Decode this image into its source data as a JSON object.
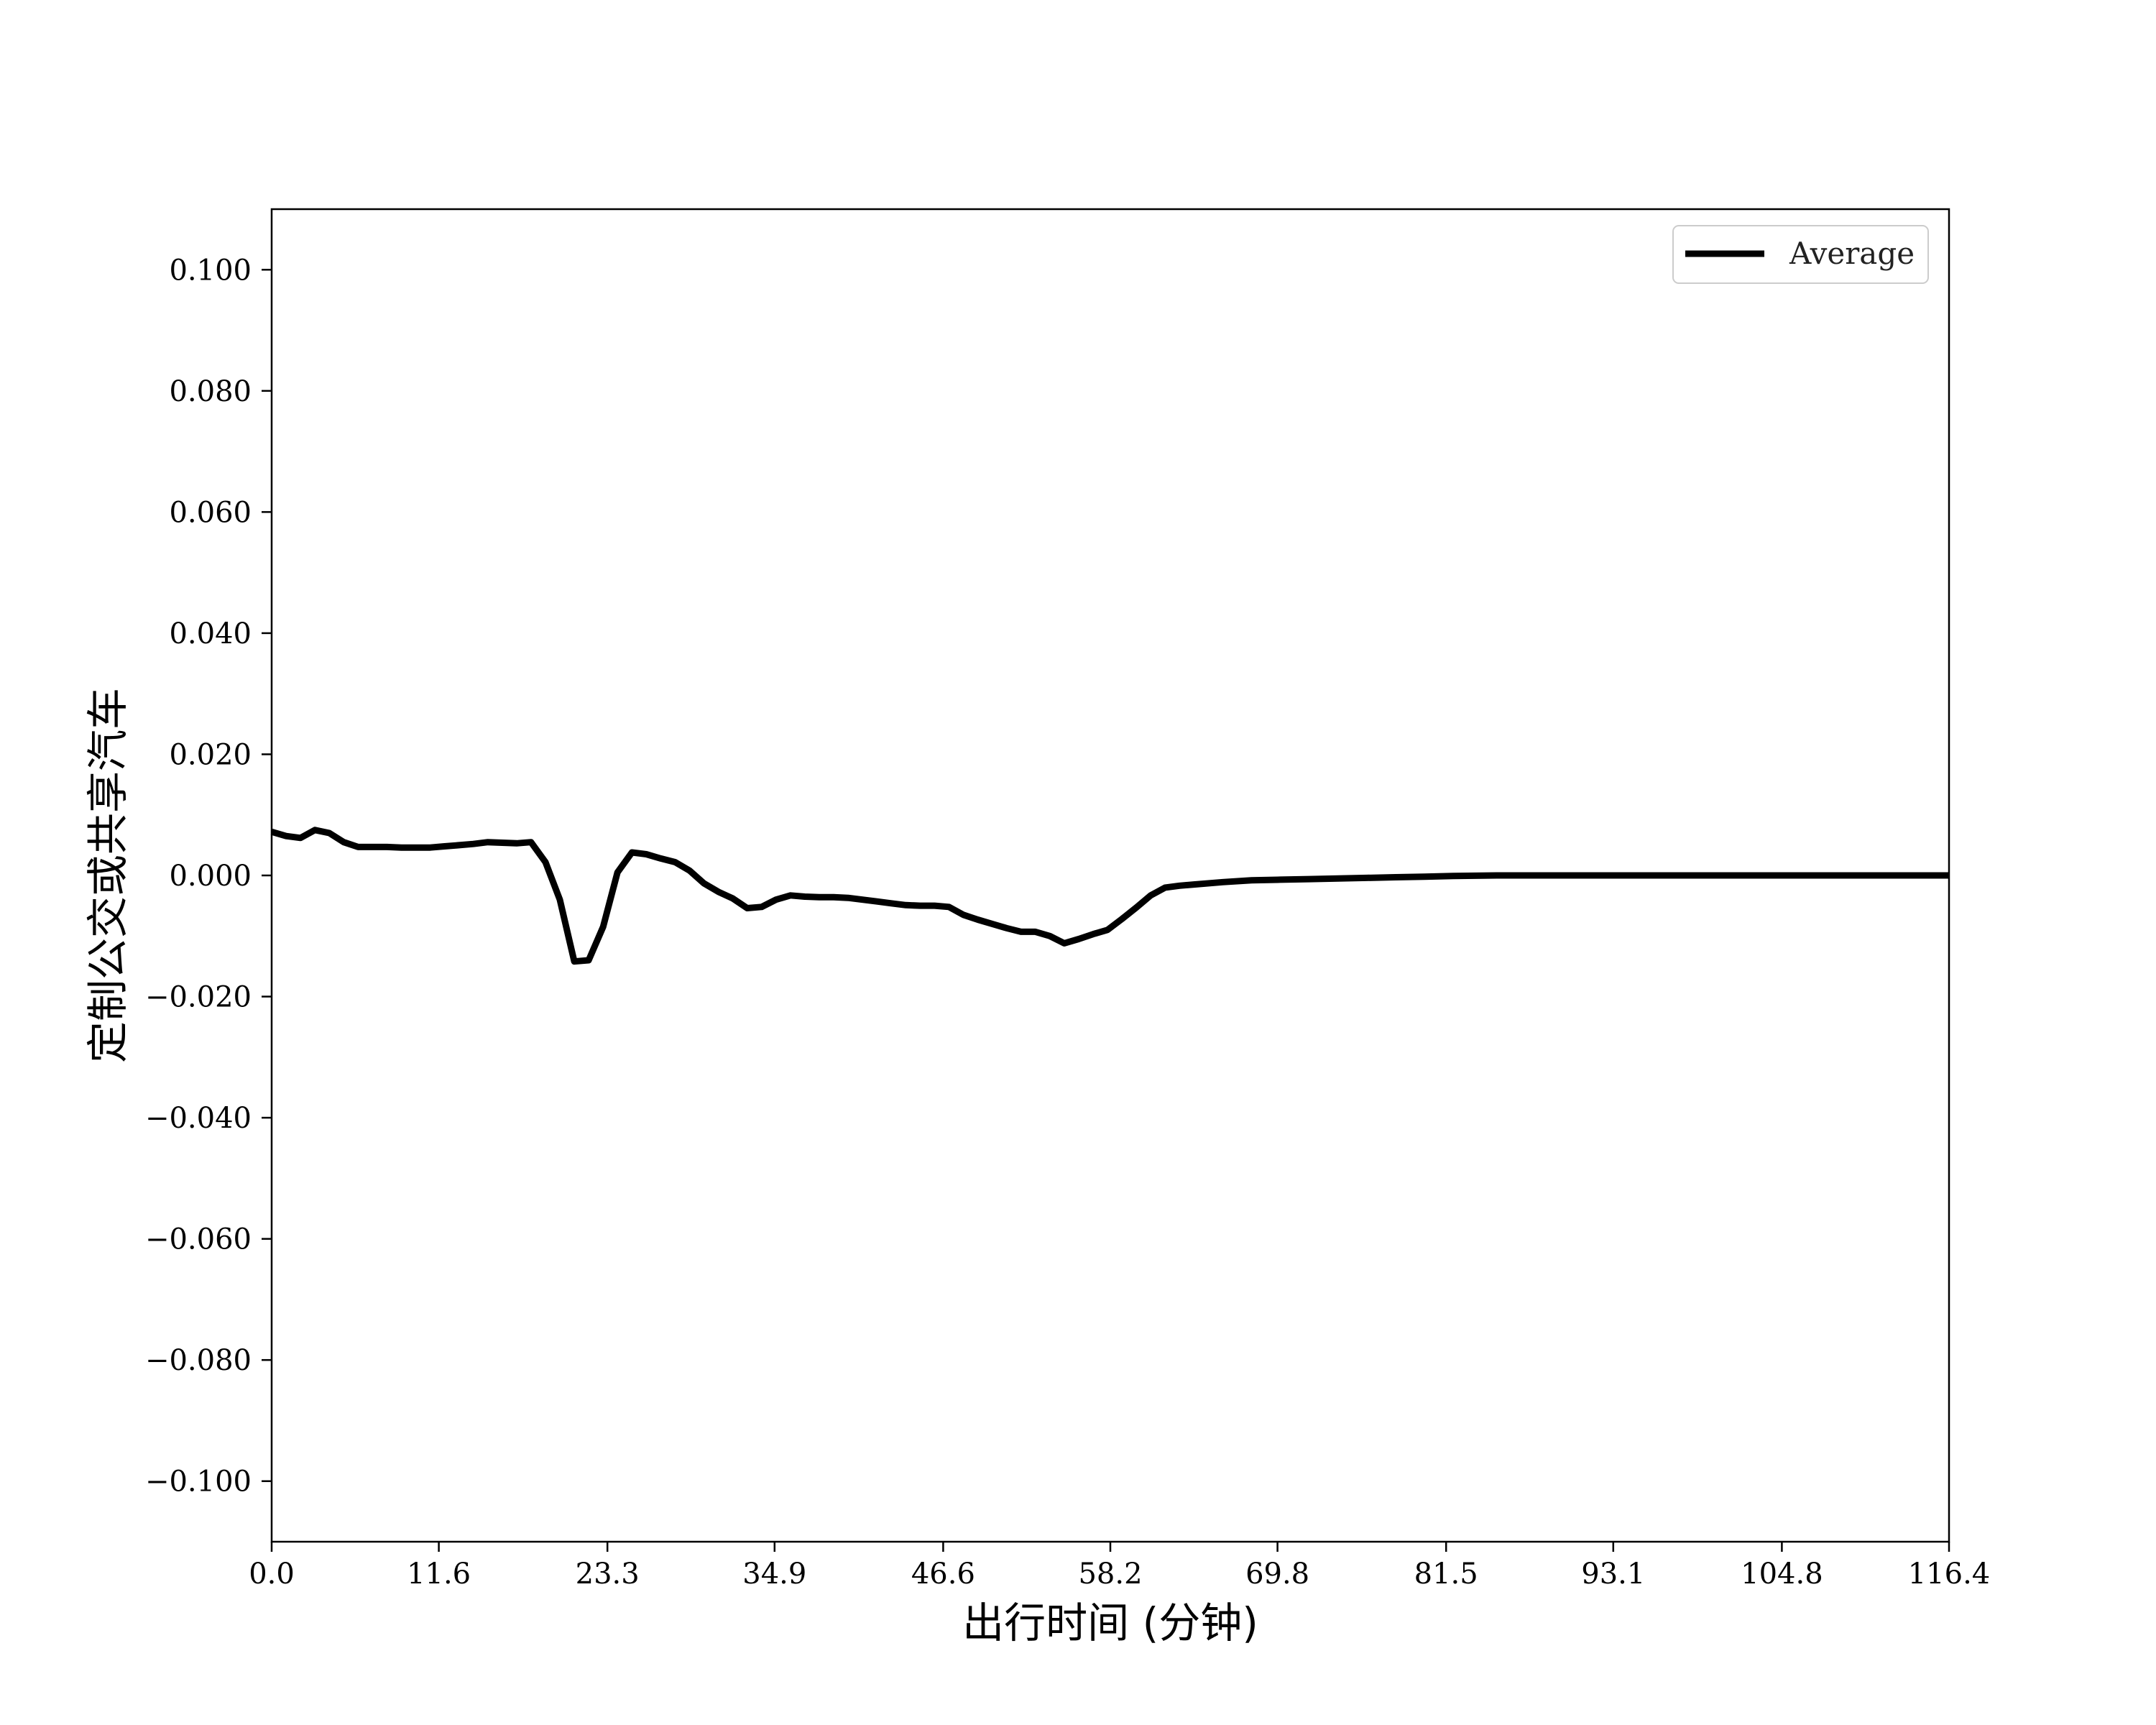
{
  "chart_data": {
    "type": "line",
    "xlabel": "出行时间 (分钟)",
    "ylabel": "定制公交或共享汽车",
    "xlim": [
      0,
      116.4
    ],
    "ylim": [
      -0.11,
      0.11
    ],
    "xticks": [
      0.0,
      11.6,
      23.3,
      34.9,
      46.6,
      58.2,
      69.8,
      81.5,
      93.1,
      104.8,
      116.4
    ],
    "xtick_labels": [
      "0.0",
      "11.6",
      "23.3",
      "34.9",
      "46.6",
      "58.2",
      "69.8",
      "81.5",
      "93.1",
      "104.8",
      "116.4"
    ],
    "yticks": [
      0.1,
      0.08,
      0.06,
      0.04,
      0.02,
      0.0,
      -0.02,
      -0.04,
      -0.06,
      -0.08,
      -0.1
    ],
    "ytick_labels": [
      "0.100",
      "0.080",
      "0.060",
      "0.040",
      "0.020",
      "0.000",
      "−0.020",
      "−0.040",
      "−0.060",
      "−0.080",
      "−0.100"
    ],
    "grid": false,
    "legend_position": "top-right",
    "series": [
      {
        "name": "Average",
        "color": "#000000",
        "x": [
          0.0,
          1.0,
          2.0,
          3.0,
          4.0,
          5.0,
          6.0,
          7.0,
          8.0,
          9.0,
          10.0,
          11.0,
          12.0,
          13.0,
          14.0,
          15.0,
          16.0,
          17.0,
          18.0,
          19.0,
          20.0,
          21.0,
          22.0,
          23.0,
          24.0,
          25.0,
          26.0,
          27.0,
          28.0,
          29.0,
          30.0,
          31.0,
          32.0,
          33.0,
          34.0,
          35.0,
          36.0,
          37.0,
          38.0,
          39.0,
          40.0,
          41.0,
          42.0,
          43.0,
          44.0,
          45.0,
          46.0,
          47.0,
          48.0,
          49.0,
          50.0,
          51.0,
          52.0,
          53.0,
          54.0,
          55.0,
          56.0,
          57.0,
          58.0,
          59.0,
          60.0,
          61.0,
          62.0,
          63.0,
          64.0,
          66.0,
          68.0,
          70.0,
          72.0,
          74.0,
          76.0,
          78.0,
          80.0,
          82.0,
          85.0,
          90.0,
          95.0,
          100.0,
          105.0,
          110.0,
          116.4
        ],
        "values": [
          0.0072,
          0.0065,
          0.0062,
          0.0075,
          0.007,
          0.0055,
          0.0047,
          0.0047,
          0.0047,
          0.0046,
          0.0046,
          0.0046,
          0.0048,
          0.005,
          0.0052,
          0.0055,
          0.0054,
          0.0053,
          0.0055,
          0.0022,
          -0.004,
          -0.0142,
          -0.014,
          -0.0085,
          0.0005,
          0.0038,
          0.0035,
          0.0028,
          0.0022,
          0.0008,
          -0.0013,
          -0.0027,
          -0.0038,
          -0.0054,
          -0.0052,
          -0.004,
          -0.0033,
          -0.0035,
          -0.0036,
          -0.0036,
          -0.0037,
          -0.004,
          -0.0043,
          -0.0046,
          -0.0049,
          -0.005,
          -0.005,
          -0.0052,
          -0.0065,
          -0.0073,
          -0.008,
          -0.0087,
          -0.0093,
          -0.0093,
          -0.01,
          -0.0112,
          -0.0105,
          -0.0097,
          -0.009,
          -0.0072,
          -0.0053,
          -0.0033,
          -0.002,
          -0.0017,
          -0.0015,
          -0.0011,
          -0.0008,
          -0.0007,
          -0.0006,
          -0.0005,
          -0.0004,
          -0.0003,
          -0.0002,
          -0.0001,
          0.0,
          0.0,
          0.0,
          0.0,
          0.0,
          0.0,
          0.0
        ]
      }
    ]
  }
}
